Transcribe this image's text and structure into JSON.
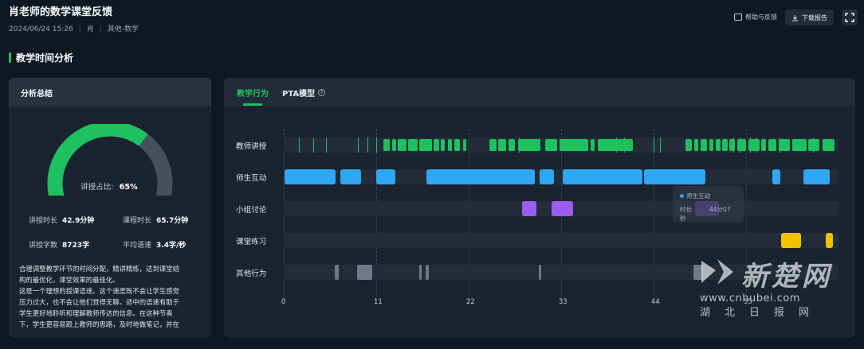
{
  "header": {
    "title": "肖老师的数学课堂反馈",
    "date": "2024/06/24 15:26",
    "teacher": "肖",
    "subject": "其他-数学",
    "help_label": "帮助与反馈",
    "download_label": "下载报告"
  },
  "section": {
    "title": "教学时间分析"
  },
  "summary": {
    "title": "分析总结",
    "gauge_label": "讲授占比:",
    "gauge_value": "65%",
    "gauge_fraction": 0.65,
    "stats": {
      "lecture_time_label": "讲授时长",
      "lecture_time_value": "42.9分钟",
      "class_time_label": "课程时长",
      "class_time_value": "65.7分钟",
      "word_count_label": "讲授字数",
      "word_count_value": "8723字",
      "speed_label": "平均语速",
      "speed_value": "3.4字/秒"
    },
    "desc_lines": [
      "合理调整教学环节的时间分配，精讲精练，达到课堂结",
      "构的最优化，课堂效果的最佳化。",
      "这是一个理想的授课语速。这个速度既不会让学生感觉",
      "压力过大，也不会让他们觉得无聊。适中的语速有助于",
      "学生更好地聆听和理解教师传达的信息。在这种节奏",
      "下，学生更容易跟上教师的思路，及时地做笔记，并在"
    ]
  },
  "timeline": {
    "tabs": [
      {
        "label": "教学行为"
      },
      {
        "label": "PTA模型"
      }
    ],
    "rows": [
      "教师讲授",
      "师生互动",
      "小组讨论",
      "课堂练习",
      "其他行为"
    ],
    "x_ticks": [
      "0",
      "11",
      "22",
      "33",
      "44",
      "55"
    ],
    "x_max": 66,
    "colors": {
      "lecture": "#1ec15f",
      "interact": "#2ea7f5",
      "group": "#9b5cf0",
      "practice": "#f2c200",
      "other": "#6e7a8b"
    },
    "tooltip": {
      "title": "师生互动",
      "key": "时长",
      "value": "44分07秒"
    },
    "lecture_ticks": [
      1.8,
      3.5,
      5.0,
      8.8,
      10.0,
      11.0,
      28.0,
      39.5,
      40.5,
      44.0,
      44.8,
      53.5,
      54.2,
      55.5,
      56.2,
      59.0,
      63.0
    ],
    "lecture_segments": [
      [
        11.9,
        12.6
      ],
      [
        12.9,
        13.4
      ],
      [
        13.6,
        14.6
      ],
      [
        14.8,
        15.9
      ],
      [
        16.1,
        17.6
      ],
      [
        17.8,
        18.5
      ],
      [
        18.7,
        19.2
      ],
      [
        19.5,
        20.0
      ],
      [
        20.3,
        21.0
      ],
      [
        21.3,
        21.7
      ],
      [
        24.5,
        25.3
      ],
      [
        25.5,
        26.5
      ],
      [
        26.7,
        27.5
      ],
      [
        27.9,
        30.5
      ],
      [
        31.1,
        32.5
      ],
      [
        32.8,
        36.2
      ],
      [
        36.5,
        37.0
      ],
      [
        37.4,
        41.5
      ],
      [
        47.8,
        48.6
      ],
      [
        48.8,
        49.3
      ],
      [
        49.6,
        50.4
      ],
      [
        50.6,
        51.1
      ],
      [
        51.4,
        52.0
      ],
      [
        52.2,
        52.8
      ],
      [
        53.0,
        53.7
      ],
      [
        54.0,
        55.0
      ],
      [
        55.3,
        56.6
      ],
      [
        56.8,
        57.4
      ],
      [
        57.7,
        58.6
      ],
      [
        58.9,
        60.2
      ],
      [
        60.5,
        62.2
      ],
      [
        62.4,
        63.7
      ],
      [
        64.1,
        65.5
      ]
    ],
    "interact_segments": [
      [
        0.1,
        6.2
      ],
      [
        6.7,
        9.2
      ],
      [
        11.0,
        13.3
      ],
      [
        17.0,
        29.9
      ],
      [
        30.4,
        32.1
      ],
      [
        33.2,
        42.7
      ],
      [
        42.9,
        50.2
      ],
      [
        58.1,
        59.1
      ],
      [
        61.8,
        65.0
      ]
    ],
    "group_segments": [
      [
        28.4,
        30.1
      ],
      [
        31.9,
        34.4
      ],
      [
        48.9,
        51.8
      ]
    ],
    "practice_segments": [
      [
        59.2,
        61.5
      ],
      [
        64.5,
        65.3
      ]
    ],
    "other_segments": [
      [
        6.1,
        6.5
      ],
      [
        8.7,
        10.5
      ],
      [
        16.1,
        16.4
      ],
      [
        16.9,
        17.3
      ],
      [
        30.3,
        30.6
      ],
      [
        48.7,
        49.9
      ]
    ]
  },
  "watermark": {
    "brand": "新楚网",
    "url": "www.cnhubei.com",
    "cn": "湖北日报网"
  }
}
